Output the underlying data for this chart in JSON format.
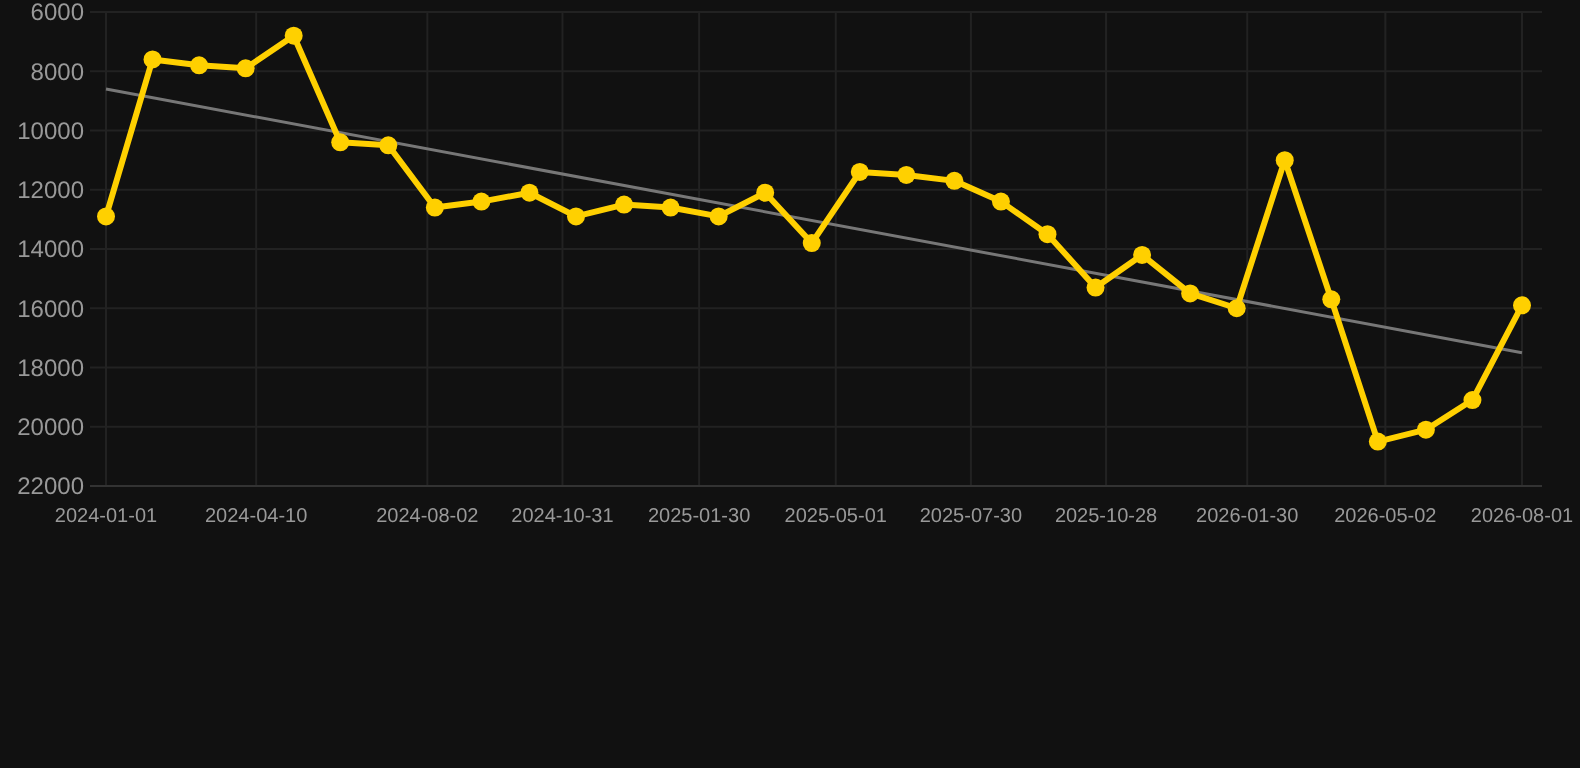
{
  "chart_data": {
    "type": "line",
    "x": [
      "2024-01-01",
      "2024-02-01",
      "2024-03-03",
      "2024-04-03",
      "2024-05-05",
      "2024-06-05",
      "2024-07-07",
      "2024-08-07",
      "2024-09-07",
      "2024-10-09",
      "2024-11-09",
      "2024-12-11",
      "2025-01-11",
      "2025-02-12",
      "2025-03-15",
      "2025-04-15",
      "2025-05-17",
      "2025-06-17",
      "2025-07-19",
      "2025-08-19",
      "2025-09-19",
      "2025-10-21",
      "2025-11-21",
      "2025-12-23",
      "2026-01-23",
      "2026-02-24",
      "2026-03-27",
      "2026-04-27",
      "2026-05-29",
      "2026-06-29",
      "2026-08-01"
    ],
    "series": [
      {
        "color": "#ffd000",
        "marker": "circle",
        "values": [
          12900,
          7600,
          7800,
          7900,
          6800,
          10400,
          10500,
          12600,
          12400,
          12100,
          12900,
          12500,
          12600,
          12900,
          12100,
          13800,
          11400,
          11500,
          11700,
          12400,
          13500,
          15300,
          14200,
          15500,
          16000,
          11000,
          15700,
          20500,
          20100,
          19100,
          15900
        ]
      },
      {
        "type": "line",
        "color": "#777777",
        "marker": "none",
        "x": [
          "2024-01-01",
          "2026-08-01"
        ],
        "values": [
          8600,
          17500
        ]
      }
    ],
    "ylim": [
      22000,
      6000
    ],
    "yticks": [
      6000,
      8000,
      10000,
      12000,
      14000,
      16000,
      18000,
      20000,
      22000
    ],
    "xlim": [
      "2024-01-01",
      "2026-08-01"
    ],
    "xticks": [
      "2024-01-01",
      "2024-04-10",
      "2024-08-02",
      "2024-10-31",
      "2025-01-30",
      "2025-05-01",
      "2025-07-30",
      "2025-10-28",
      "2026-01-30",
      "2026-05-02",
      "2026-08-01"
    ],
    "grid": true
  }
}
